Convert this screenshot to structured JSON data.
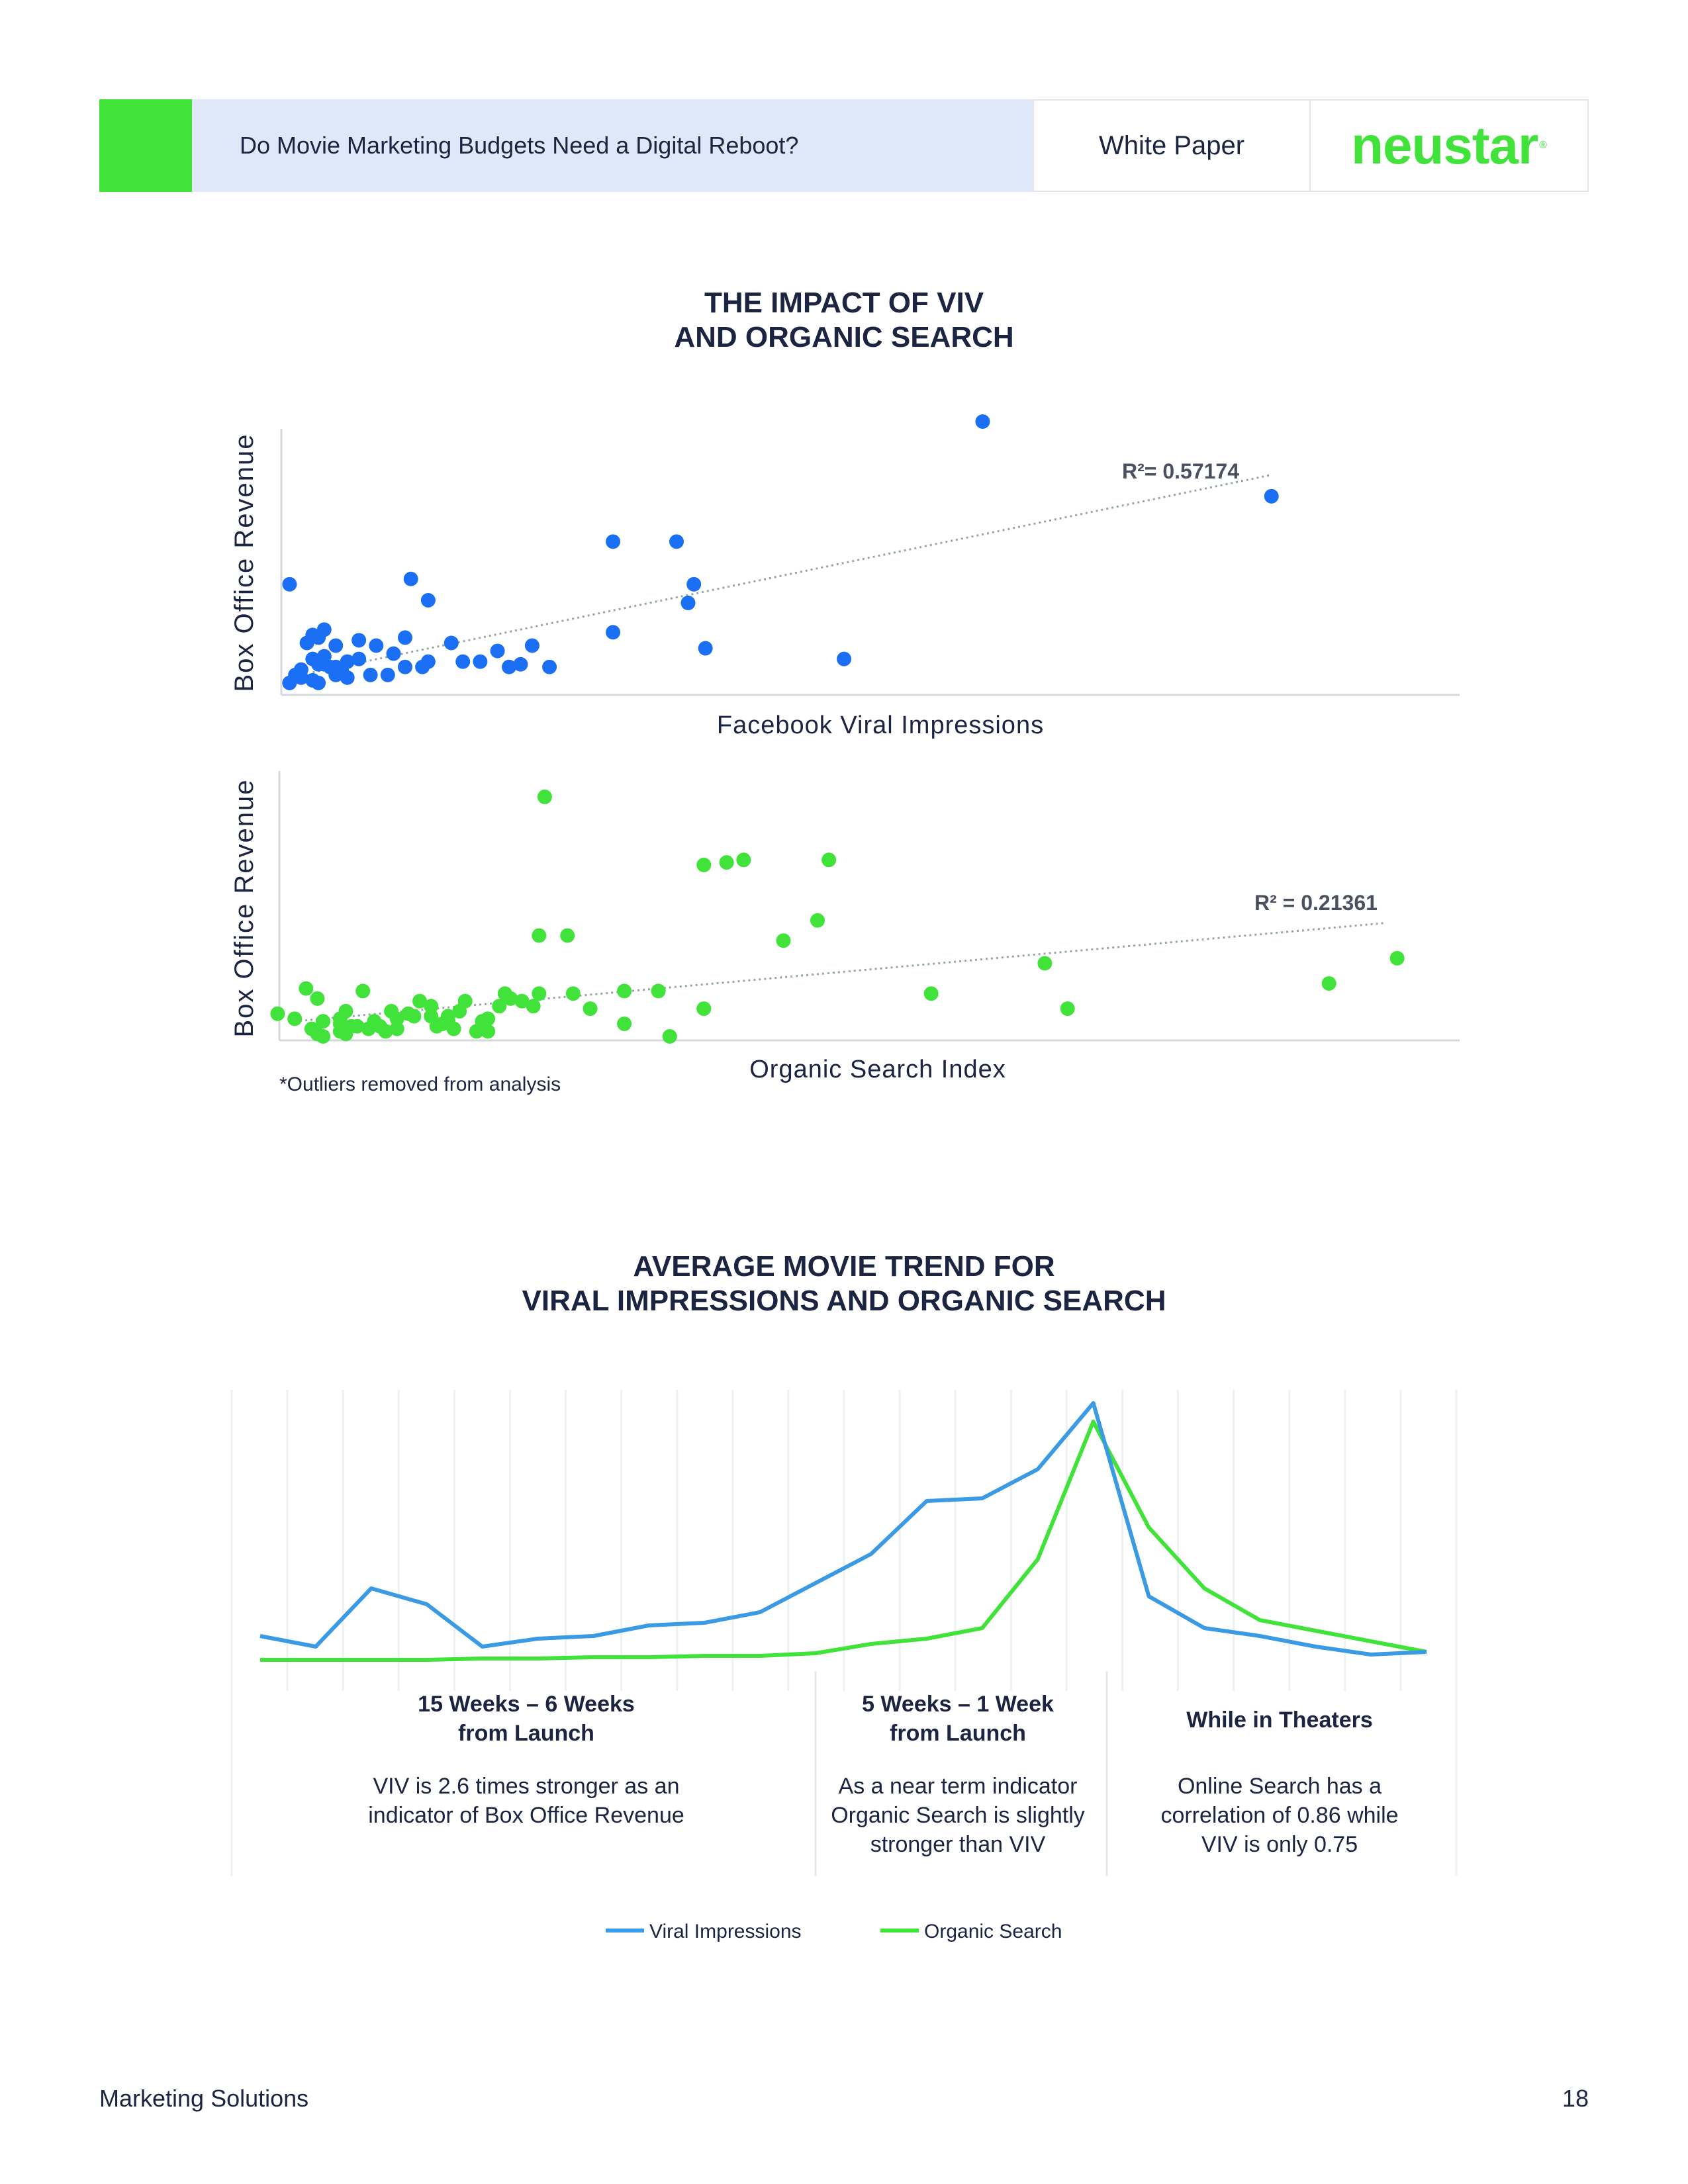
{
  "header": {
    "title": "Do Movie Marketing Budgets Need a Digital Reboot?",
    "doc_type": "White Paper",
    "logo": "neustar"
  },
  "colors": {
    "brand_green": "#41e23a",
    "viv_blue": "#1b6ff5",
    "line_blue": "#3a9ae3",
    "organic_green": "#41e23a"
  },
  "section1": {
    "title_line1": "THE IMPACT OF VIV",
    "title_line2": "AND ORGANIC SEARCH",
    "footnote": "*Outliers removed from analysis"
  },
  "section2": {
    "title_line1": "AVERAGE MOVIE TREND FOR",
    "title_line2": "VIRAL IMPRESSIONS AND ORGANIC SEARCH"
  },
  "chart_data": [
    {
      "type": "scatter",
      "ylabel": "Box Office Revenue",
      "xlabel": "Facebook Viral Impressions",
      "annotation": "R²= 0.57174",
      "xlim": [
        0,
        100
      ],
      "ylim": [
        0,
        100
      ],
      "trendline": [
        [
          3,
          6
        ],
        [
          86,
          80
        ]
      ],
      "points": [
        [
          1,
          2
        ],
        [
          2,
          4
        ],
        [
          3,
          3
        ],
        [
          3.5,
          2
        ],
        [
          1.5,
          5
        ],
        [
          2,
          7
        ],
        [
          4,
          9
        ],
        [
          3,
          11
        ],
        [
          5,
          8
        ],
        [
          6,
          10
        ],
        [
          4,
          12
        ],
        [
          5,
          5
        ],
        [
          6,
          4
        ],
        [
          7,
          11
        ],
        [
          3.5,
          9
        ],
        [
          2.5,
          17
        ],
        [
          3,
          20
        ],
        [
          3.5,
          19
        ],
        [
          4,
          22
        ],
        [
          5,
          16
        ],
        [
          4.5,
          8
        ],
        [
          5.5,
          7
        ],
        [
          8,
          5
        ],
        [
          9.5,
          5
        ],
        [
          11,
          8
        ],
        [
          10,
          13
        ],
        [
          8.5,
          16
        ],
        [
          7,
          18
        ],
        [
          11,
          19
        ],
        [
          12.5,
          8
        ],
        [
          13,
          10
        ],
        [
          15,
          17
        ],
        [
          16,
          10
        ],
        [
          17.5,
          10
        ],
        [
          19,
          14
        ],
        [
          20,
          8
        ],
        [
          21,
          9
        ],
        [
          22,
          16
        ],
        [
          23.5,
          8
        ],
        [
          1,
          39
        ],
        [
          11.5,
          41
        ],
        [
          13,
          33
        ],
        [
          29,
          55
        ],
        [
          29,
          21
        ],
        [
          34.5,
          55
        ],
        [
          36,
          39
        ],
        [
          35.5,
          32
        ],
        [
          37,
          15
        ],
        [
          49,
          11
        ],
        [
          61,
          100
        ],
        [
          86,
          72
        ]
      ]
    },
    {
      "type": "scatter",
      "ylabel": "Box Office Revenue",
      "xlabel": "Organic Search Index",
      "annotation": "R² = 0.21361",
      "xlim": [
        0,
        100
      ],
      "ylim": [
        0,
        100
      ],
      "trendline": [
        [
          1,
          6
        ],
        [
          97,
          45
        ]
      ],
      "points": [
        [
          -0.5,
          9
        ],
        [
          1,
          7
        ],
        [
          2,
          19
        ],
        [
          3,
          15
        ],
        [
          2.5,
          3
        ],
        [
          3.5,
          6
        ],
        [
          3,
          1
        ],
        [
          3.5,
          0
        ],
        [
          5,
          5
        ],
        [
          5,
          2
        ],
        [
          5,
          7
        ],
        [
          5.5,
          10
        ],
        [
          6,
          4
        ],
        [
          5.5,
          1
        ],
        [
          7,
          18
        ],
        [
          6.5,
          4
        ],
        [
          7.5,
          3
        ],
        [
          8,
          6
        ],
        [
          8.5,
          4
        ],
        [
          9,
          2
        ],
        [
          9.5,
          10
        ],
        [
          10,
          7
        ],
        [
          10,
          3
        ],
        [
          11,
          9
        ],
        [
          11.5,
          8
        ],
        [
          12,
          14
        ],
        [
          13,
          12
        ],
        [
          13,
          8
        ],
        [
          13.5,
          4
        ],
        [
          14,
          5
        ],
        [
          14.5,
          6
        ],
        [
          14.5,
          8
        ],
        [
          15,
          3
        ],
        [
          15.5,
          10
        ],
        [
          16,
          14
        ],
        [
          17,
          2
        ],
        [
          17.5,
          6
        ],
        [
          18,
          2
        ],
        [
          18,
          7
        ],
        [
          19,
          12
        ],
        [
          19.5,
          17
        ],
        [
          20,
          15
        ],
        [
          21,
          14
        ],
        [
          22,
          12
        ],
        [
          22.5,
          17
        ],
        [
          22.5,
          40
        ],
        [
          23,
          95
        ],
        [
          25,
          40
        ],
        [
          25.5,
          17
        ],
        [
          27,
          11
        ],
        [
          30,
          5
        ],
        [
          30,
          18
        ],
        [
          33,
          18
        ],
        [
          34,
          0
        ],
        [
          37,
          68
        ],
        [
          37,
          11
        ],
        [
          39,
          69
        ],
        [
          40.5,
          70
        ],
        [
          44,
          38
        ],
        [
          47,
          46
        ],
        [
          48,
          70
        ],
        [
          57,
          17
        ],
        [
          67,
          29
        ],
        [
          69,
          11
        ],
        [
          92,
          21
        ],
        [
          98,
          31
        ]
      ]
    },
    {
      "type": "line",
      "categories": 22,
      "ylim": [
        0,
        100
      ],
      "series": [
        {
          "name": "Viral Impressions",
          "color": "#3a9ae3",
          "values": [
            12,
            8,
            30,
            24,
            8,
            11,
            12,
            16,
            17,
            21,
            32,
            43,
            63,
            64,
            75,
            100,
            27,
            15,
            12,
            8,
            5,
            6
          ]
        },
        {
          "name": "Organic Search",
          "color": "#41e23a",
          "values": [
            3,
            3,
            3,
            3,
            3.5,
            3.5,
            4,
            4,
            4.5,
            4.5,
            5.5,
            9,
            11,
            15,
            41,
            93,
            53,
            30,
            18,
            14,
            10,
            6
          ]
        }
      ],
      "phases": [
        {
          "title": "15 Weeks – 6 Weeks\nfrom Launch",
          "text": "VIV is 2.6 times stronger as an\nindicator of Box Office Revenue"
        },
        {
          "title": "5 Weeks – 1 Week\nfrom Launch",
          "text": "As a near term indicator\nOrganic Search is slightly\nstronger than VIV"
        },
        {
          "title": "While in Theaters",
          "text": "Online Search has a\ncorrelation of 0.86 while\nVIV is only 0.75"
        }
      ]
    }
  ],
  "footer": {
    "left": "Marketing Solutions",
    "page": "18"
  }
}
